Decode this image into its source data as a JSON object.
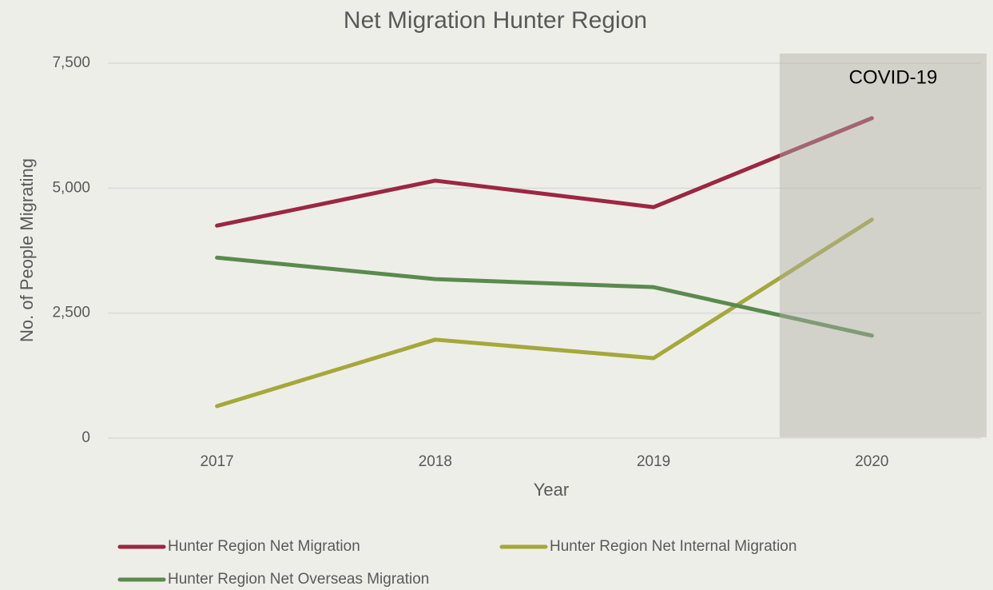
{
  "chart_data": {
    "type": "line",
    "title": "Net Migration Hunter Region",
    "x_label": "Year",
    "y_label": "No. of People Migrating",
    "categories": [
      "2017",
      "2018",
      "2019",
      "2020"
    ],
    "series": [
      {
        "name": "Hunter Region Net Migration",
        "color": "#9b2743",
        "values": [
          4250,
          5150,
          4620,
          6400
        ]
      },
      {
        "name": "Hunter Region Net Internal Migration",
        "color": "#a5a83a",
        "values": [
          640,
          1970,
          1600,
          4370
        ]
      },
      {
        "name": "Hunter Region Net Overseas Migration",
        "color": "#5a8a4e",
        "values": [
          3610,
          3180,
          3020,
          2050
        ]
      }
    ],
    "annotation": "COVID-19",
    "ylim": [
      0,
      7500
    ],
    "yticks": [
      0,
      {
        "value": 2500,
        "label": "2,500"
      },
      {
        "value": 5000,
        "label": "5,000"
      },
      {
        "value": 7500,
        "label": "7,500"
      }
    ],
    "grid": true,
    "legend": "bottom"
  }
}
